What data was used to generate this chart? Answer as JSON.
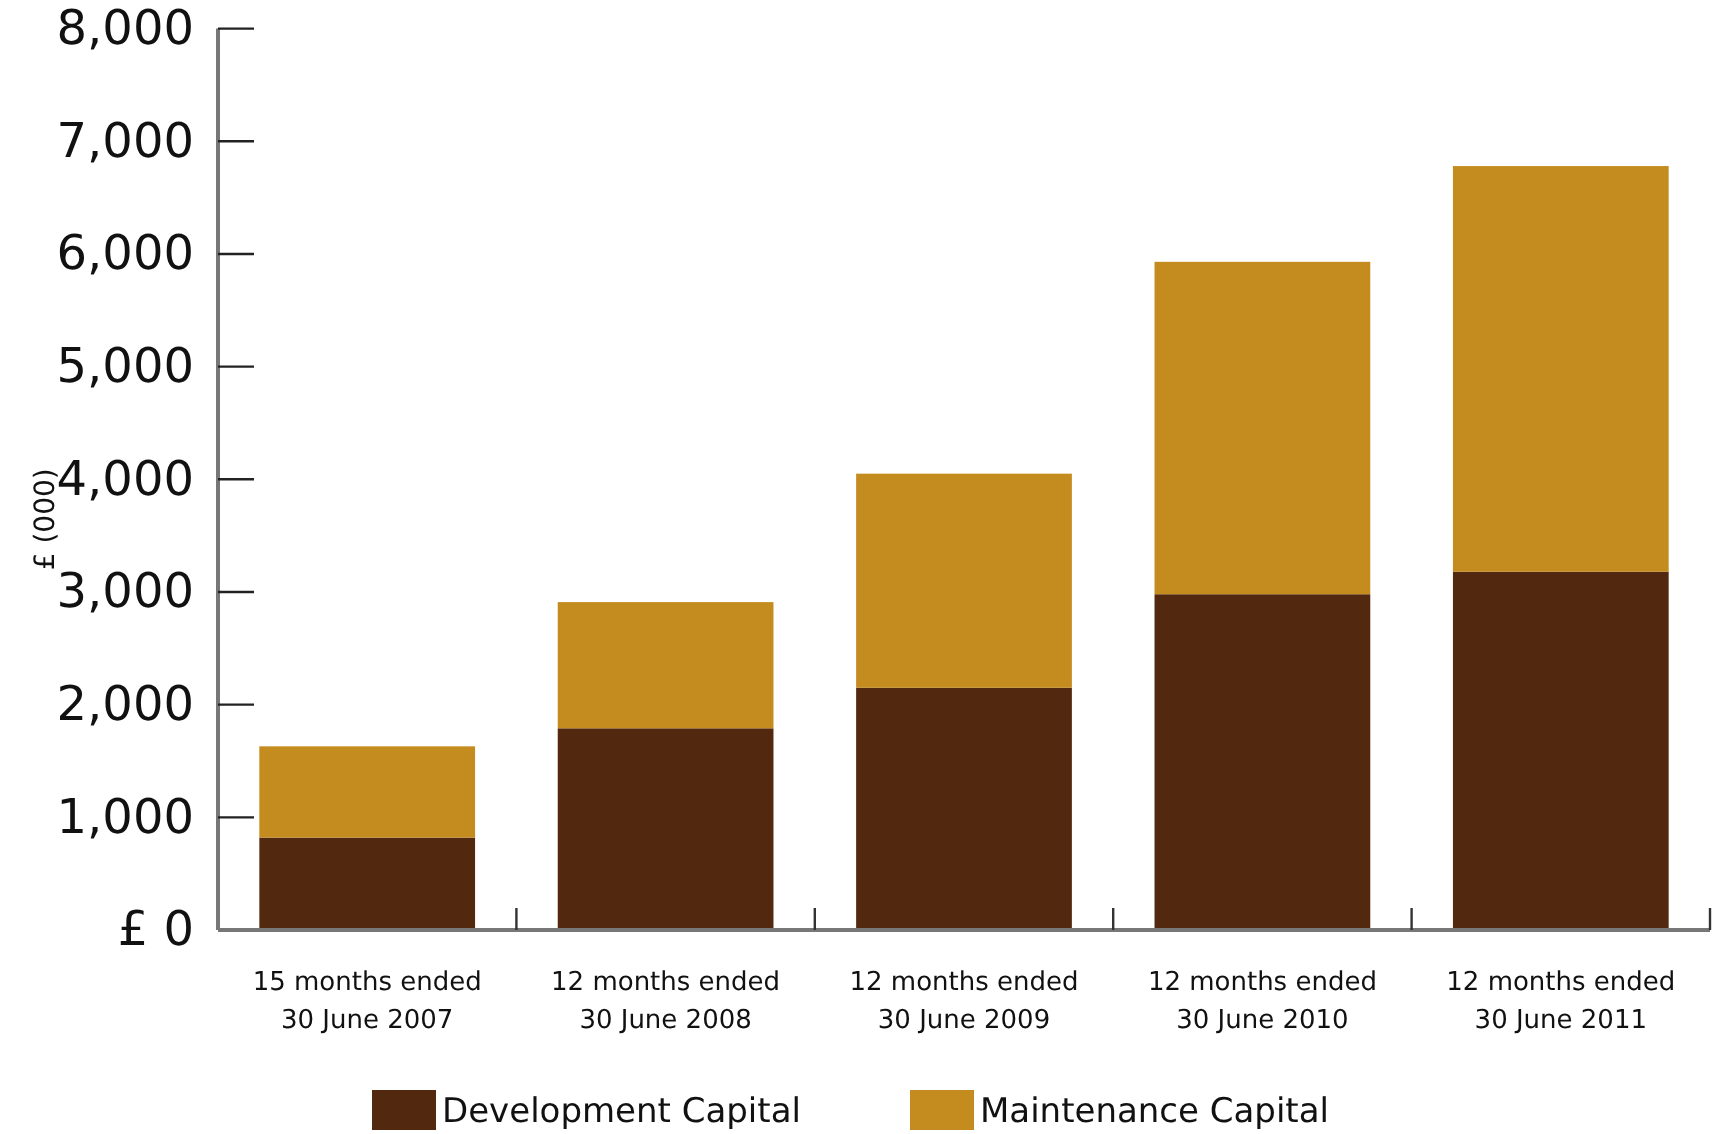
{
  "chart_data": {
    "type": "bar",
    "stacked": true,
    "categories": [
      "15 months ended\n30 June 2007",
      "12 months ended\n30 June 2008",
      "12 months ended\n30 June 2009",
      "12 months ended\n30 June 2010",
      "12 months ended\n30 June 2011"
    ],
    "series": [
      {
        "name": "Development Capital",
        "color": "#52290f",
        "values": [
          820,
          1790,
          2150,
          2980,
          3180
        ]
      },
      {
        "name": "Maintenance Capital",
        "color": "#c48b1e",
        "values": [
          810,
          1120,
          1900,
          2950,
          3600
        ]
      }
    ],
    "ylabel": "£ (000)",
    "ylim": [
      0,
      8000
    ],
    "yticks": [
      {
        "value": 0,
        "label": "£ 0"
      },
      {
        "value": 1000,
        "label": "1,000"
      },
      {
        "value": 2000,
        "label": "2,000"
      },
      {
        "value": 3000,
        "label": "3,000"
      },
      {
        "value": 4000,
        "label": "4,000"
      },
      {
        "value": 5000,
        "label": "5,000"
      },
      {
        "value": 6000,
        "label": "6,000"
      },
      {
        "value": 7000,
        "label": "7,000"
      },
      {
        "value": 8000,
        "label": "8,000"
      }
    ],
    "grid": false,
    "legend": "bottom"
  }
}
